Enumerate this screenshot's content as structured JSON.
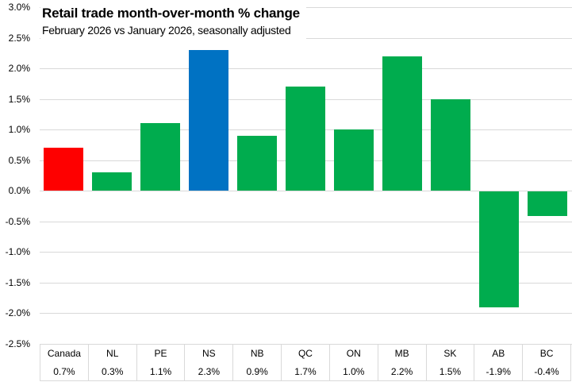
{
  "chart_data": {
    "type": "bar",
    "title": "Retail trade month-over-month % change",
    "subtitle": "February 2026 vs January 2026,  seasonally adjusted",
    "categories": [
      "Canada",
      "NL",
      "PE",
      "NS",
      "NB",
      "QC",
      "ON",
      "MB",
      "SK",
      "AB",
      "BC"
    ],
    "values": [
      0.7,
      0.3,
      1.1,
      2.3,
      0.9,
      1.7,
      1.0,
      2.2,
      1.5,
      -1.9,
      -0.4
    ],
    "value_labels": [
      "0.7%",
      "0.3%",
      "1.1%",
      "2.3%",
      "0.9%",
      "1.7%",
      "1.0%",
      "2.2%",
      "1.5%",
      "-1.9%",
      "-0.4%"
    ],
    "bar_colors": [
      "#fe0000",
      "#00ac4e",
      "#00ac4e",
      "#0072c3",
      "#00ac4e",
      "#00ac4e",
      "#00ac4e",
      "#00ac4e",
      "#00ac4e",
      "#00ac4e",
      "#00ac4e"
    ],
    "ylabel": "",
    "xlabel": "",
    "ylim": [
      -2.5,
      3.0
    ],
    "ytick_step": 0.5,
    "ytick_labels": [
      "3.0%",
      "2.5%",
      "2.0%",
      "1.5%",
      "1.0%",
      "0.5%",
      "0.0%",
      "-0.5%",
      "-1.0%",
      "-1.5%",
      "-2.0%",
      "-2.5%"
    ],
    "grid": true,
    "legend_position": "none",
    "data_table_shown": true,
    "colors": {
      "gridline": "#d9d9d9",
      "text": "#000000",
      "background": "#ffffff"
    }
  }
}
